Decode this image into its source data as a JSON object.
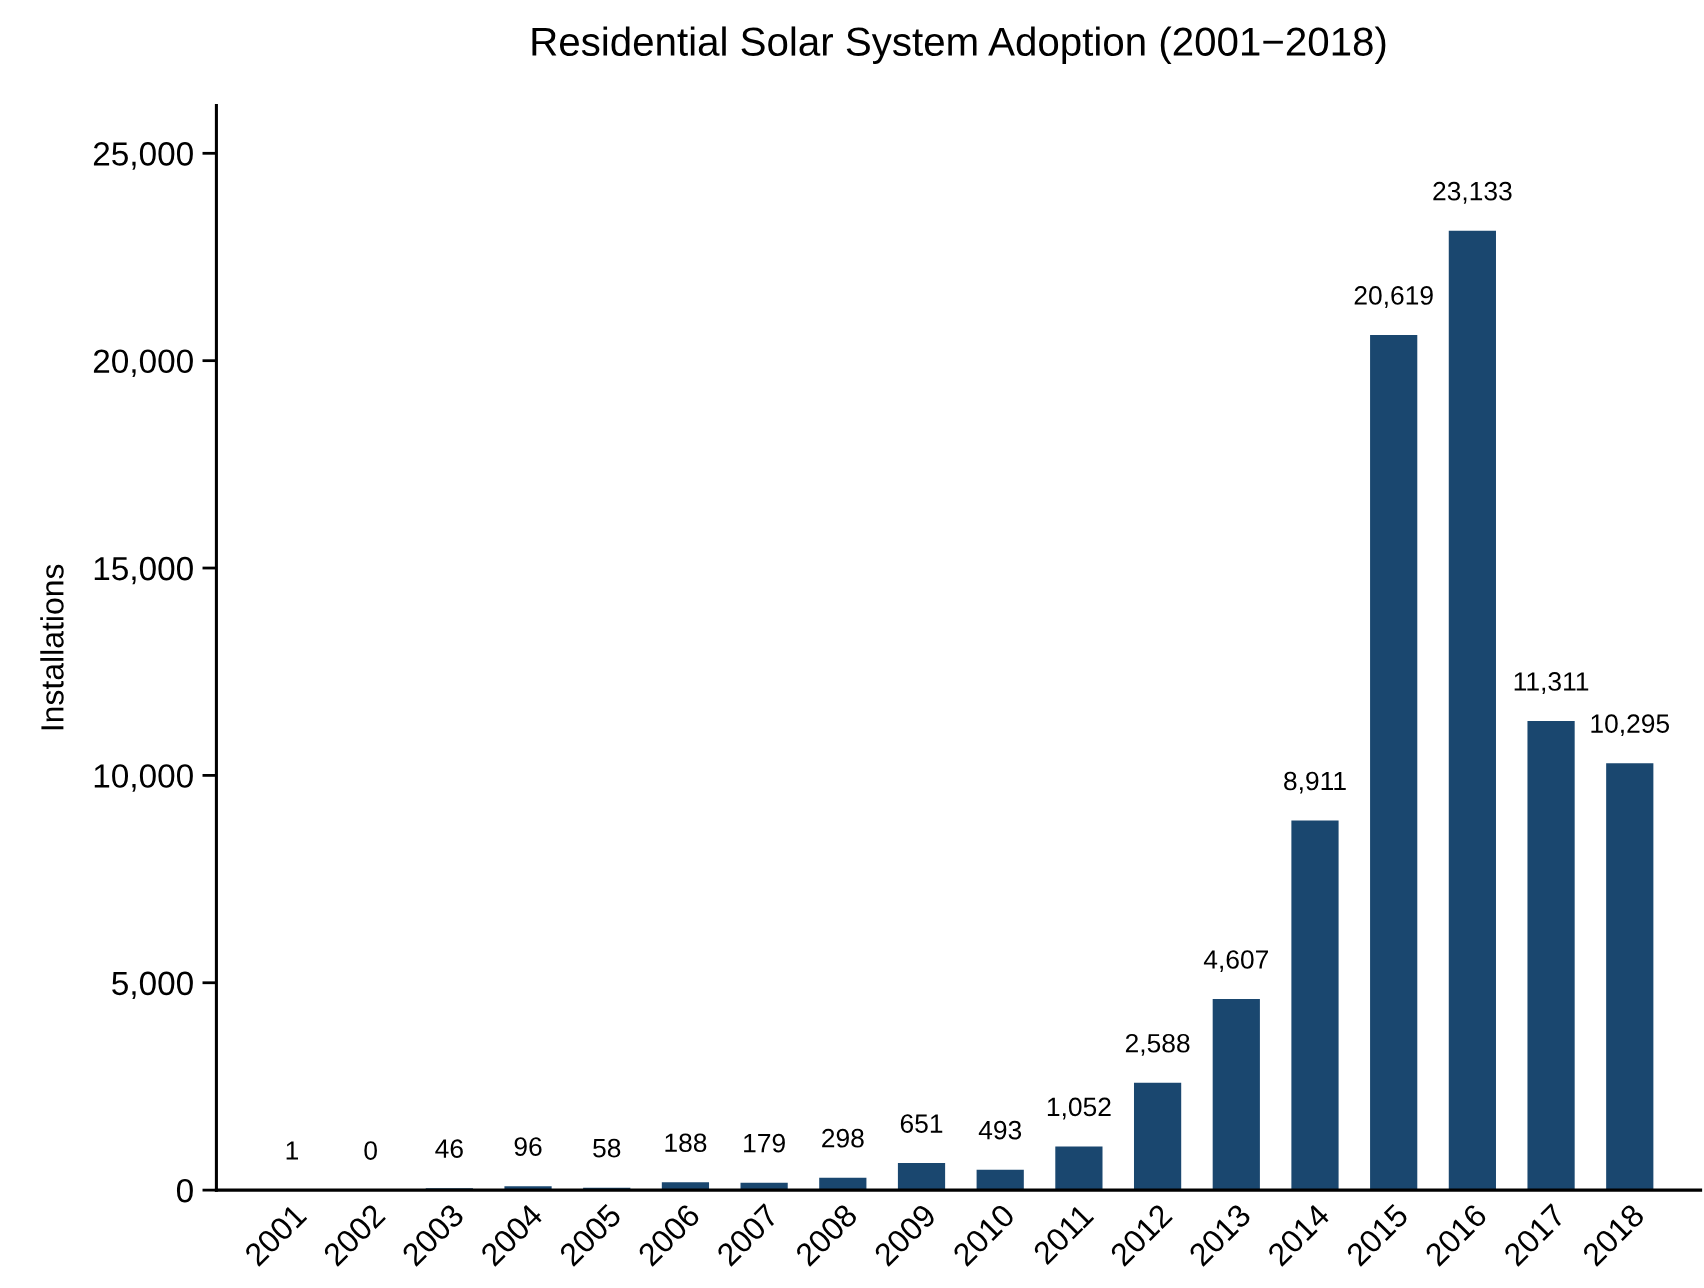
{
  "chart_data": {
    "type": "bar",
    "title": "Residential Solar System Adoption (2001−2018)",
    "ylabel": "Installations",
    "categories": [
      "2001",
      "2002",
      "2003",
      "2004",
      "2005",
      "2006",
      "2007",
      "2008",
      "2009",
      "2010",
      "2011",
      "2012",
      "2013",
      "2014",
      "2015",
      "2016",
      "2017",
      "2018"
    ],
    "values": [
      1,
      0,
      46,
      96,
      58,
      188,
      179,
      298,
      651,
      493,
      1052,
      2588,
      4607,
      8911,
      20619,
      23133,
      11311,
      10295
    ],
    "value_labels": [
      "1",
      "0",
      "46",
      "96",
      "58",
      "188",
      "179",
      "298",
      "651",
      "493",
      "1,052",
      "2,588",
      "4,607",
      "8,911",
      "20,619",
      "23,133",
      "11,311",
      "10,295"
    ],
    "color": "#1a476f",
    "ylim": [
      0,
      26150
    ],
    "yticks": [
      0,
      {
        "value": 5000,
        "label": "5,000"
      },
      {
        "value": 10000,
        "label": "10,000"
      },
      {
        "value": 15000,
        "label": "15,000"
      },
      {
        "value": 20000,
        "label": "20,000"
      },
      {
        "value": 25000,
        "label": "25,000"
      }
    ],
    "grid": false,
    "legend": false
  }
}
